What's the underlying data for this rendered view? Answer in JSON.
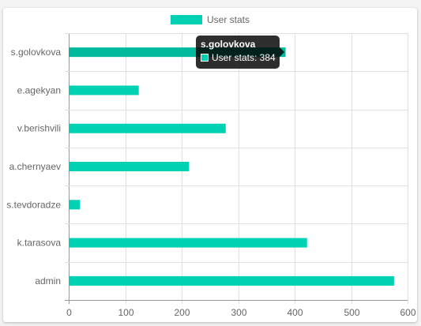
{
  "chart_data": {
    "type": "bar",
    "orientation": "horizontal",
    "categories": [
      "s.golovkova",
      "e.agekyan",
      "v.berishvili",
      "a.chernyaev",
      "s.tevdoradze",
      "k.tarasova",
      "admin"
    ],
    "series": [
      {
        "name": "User stats",
        "values": [
          384,
          124,
          278,
          213,
          20,
          422,
          576
        ],
        "color": "#00d1b2"
      }
    ],
    "xlim": [
      0,
      600
    ],
    "xticks": [
      0,
      100,
      200,
      300,
      400,
      500,
      600
    ],
    "xlabel": "",
    "ylabel": "",
    "grid": true,
    "legend_position": "top"
  },
  "tooltip": {
    "title": "s.golovkova",
    "label": "User stats: 384",
    "swatch_color": "#00d1b2"
  }
}
